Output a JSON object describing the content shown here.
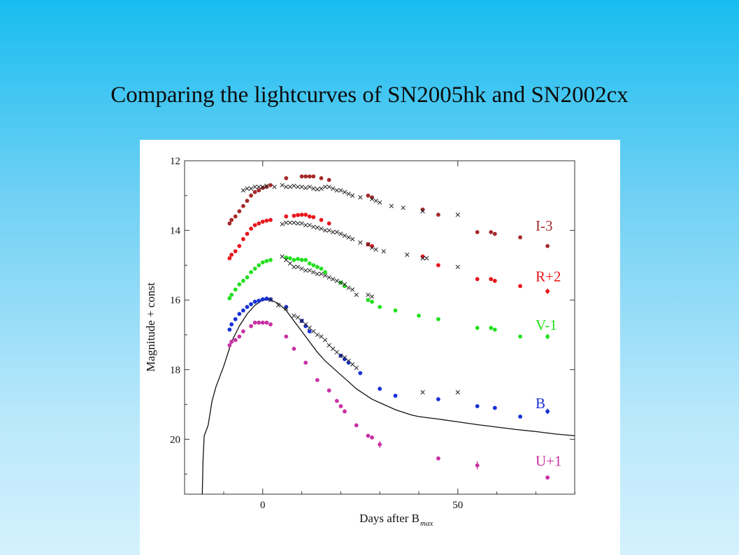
{
  "slide": {
    "title": "Comparing the lightcurves of SN2005hk and SN2002cx"
  },
  "chart_data": {
    "type": "scatter",
    "title": "",
    "xlabel": "Days after B",
    "xlabel_subscript": "max",
    "ylabel": "Magnitude + const",
    "xlim": [
      -20,
      80
    ],
    "ylim": [
      21.6,
      12
    ],
    "y_inverted": true,
    "x_ticks": [
      0,
      50
    ],
    "y_ticks": [
      12,
      14,
      16,
      18,
      20
    ],
    "series": [
      {
        "name": "I-3",
        "color": "#a52a2a",
        "marker": "dot",
        "x": [
          -8.5,
          -8,
          -7,
          -6,
          -5,
          -4,
          -3,
          -2,
          -1,
          0,
          1,
          2,
          6,
          10,
          11,
          12,
          13,
          15,
          17,
          27,
          28,
          41,
          45,
          55,
          58.5,
          59.5,
          66,
          73
        ],
        "y": [
          13.8,
          13.7,
          13.6,
          13.45,
          13.3,
          13.15,
          13.0,
          12.9,
          12.85,
          12.78,
          12.75,
          12.7,
          12.5,
          12.45,
          12.45,
          12.45,
          12.45,
          12.5,
          12.55,
          13.0,
          13.05,
          13.4,
          13.55,
          14.05,
          14.05,
          14.1,
          14.2,
          14.45
        ]
      },
      {
        "name": "R+2",
        "color": "#e8161b",
        "marker": "dot",
        "x": [
          -8.5,
          -8,
          -7,
          -6,
          -5,
          -4,
          -3,
          -2,
          -1,
          0,
          1,
          2,
          6,
          8,
          9,
          10,
          11,
          12,
          13,
          15,
          17,
          27,
          28,
          41,
          45,
          55,
          58.5,
          59.5,
          66,
          73
        ],
        "y": [
          14.8,
          14.7,
          14.6,
          14.45,
          14.25,
          14.1,
          13.95,
          13.85,
          13.8,
          13.75,
          13.72,
          13.7,
          13.6,
          13.58,
          13.56,
          13.55,
          13.55,
          13.6,
          13.62,
          13.7,
          13.8,
          14.4,
          14.45,
          14.75,
          15.0,
          15.4,
          15.4,
          15.45,
          15.6,
          15.75
        ],
        "error_bars": [
          {
            "x": 73,
            "y": 15.75,
            "err": 0.08
          }
        ]
      },
      {
        "name": "V-1",
        "color": "#22e01e",
        "marker": "dot",
        "x": [
          -8.5,
          -8,
          -7,
          -6,
          -5,
          -4,
          -3,
          -2,
          -1,
          0,
          1,
          2,
          6,
          7,
          8,
          9,
          10,
          11,
          12,
          13,
          14,
          15,
          16,
          20,
          21,
          27,
          28,
          30,
          34,
          40,
          45,
          55,
          58.5,
          59.5,
          66,
          73
        ],
        "y": [
          15.95,
          15.85,
          15.7,
          15.55,
          15.45,
          15.35,
          15.2,
          15.1,
          15.0,
          14.92,
          14.88,
          14.85,
          14.78,
          14.8,
          14.85,
          14.82,
          14.85,
          14.85,
          14.95,
          15.0,
          15.05,
          15.1,
          15.2,
          15.5,
          15.6,
          16.0,
          16.05,
          16.2,
          16.3,
          16.45,
          16.55,
          16.8,
          16.8,
          16.85,
          17.05,
          17.05
        ],
        "error_bars": [
          {
            "x": 73,
            "y": 17.05,
            "err": 0.08
          }
        ]
      },
      {
        "name": "B",
        "color": "#1730d6",
        "marker": "dot",
        "x": [
          -8.5,
          -8,
          -7,
          -6,
          -5,
          -4,
          -3,
          -2,
          -1,
          0,
          1,
          2,
          6,
          10,
          11,
          12,
          20,
          21,
          22,
          25,
          30,
          34,
          45,
          55,
          59.5,
          66,
          73
        ],
        "y": [
          16.85,
          16.7,
          16.55,
          16.4,
          16.3,
          16.2,
          16.12,
          16.05,
          16.02,
          15.98,
          15.96,
          15.98,
          16.2,
          16.6,
          16.75,
          16.9,
          17.6,
          17.7,
          17.8,
          18.1,
          18.55,
          18.75,
          18.85,
          19.05,
          19.1,
          19.35,
          19.2
        ],
        "error_bars": [
          {
            "x": 73,
            "y": 19.2,
            "err": 0.08
          }
        ]
      },
      {
        "name": "U+1",
        "color": "#c830a4",
        "marker": "dot",
        "x": [
          -8.5,
          -8,
          -7,
          -6,
          -5,
          -3,
          -2,
          -1,
          0,
          1,
          2,
          6,
          8,
          11,
          14,
          17,
          19,
          20,
          21,
          24,
          27,
          28,
          30,
          45,
          55,
          73
        ],
        "y": [
          17.3,
          17.2,
          17.15,
          17.05,
          16.9,
          16.75,
          16.65,
          16.65,
          16.65,
          16.65,
          16.7,
          17.05,
          17.4,
          17.8,
          18.3,
          18.6,
          18.9,
          19.05,
          19.2,
          19.6,
          19.9,
          19.95,
          20.15,
          20.55,
          20.75,
          21.1
        ],
        "error_bars": [
          {
            "x": 30,
            "y": 20.15,
            "err": 0.1
          },
          {
            "x": 55,
            "y": 20.75,
            "err": 0.12
          }
        ]
      },
      {
        "name": "SN2002cx",
        "color": "#222222",
        "marker": "x",
        "x": [
          -5,
          -4,
          -3,
          -2,
          -1,
          0,
          1,
          3,
          5,
          6,
          7,
          8,
          9,
          10,
          11,
          12,
          13,
          14,
          15,
          16,
          17,
          18,
          19,
          20,
          21,
          22,
          23,
          25,
          28,
          29,
          30,
          33,
          36,
          41,
          50,
          5,
          6,
          7,
          8,
          9,
          10,
          11,
          12,
          13,
          14,
          15,
          16,
          17,
          18,
          19,
          20,
          21,
          22,
          23,
          25,
          27,
          28,
          29,
          31,
          37,
          41,
          42,
          50,
          5,
          6,
          7,
          8,
          9,
          10,
          11,
          12,
          13,
          14,
          15,
          16,
          17,
          18,
          19,
          20,
          21,
          22,
          23,
          24,
          27,
          28,
          2,
          4,
          6,
          8,
          9,
          10,
          11,
          12,
          13,
          14,
          15,
          16,
          17,
          18,
          19,
          20,
          21,
          22,
          23,
          24,
          41,
          50
        ],
        "y": [
          12.85,
          12.8,
          12.8,
          12.75,
          12.75,
          12.75,
          12.72,
          12.75,
          12.7,
          12.75,
          12.75,
          12.72,
          12.75,
          12.75,
          12.78,
          12.75,
          12.8,
          12.82,
          12.8,
          12.75,
          12.75,
          12.8,
          12.85,
          12.85,
          12.9,
          12.95,
          13.0,
          13.05,
          13.1,
          13.15,
          13.2,
          13.3,
          13.35,
          13.45,
          13.55,
          13.82,
          13.78,
          13.78,
          13.78,
          13.8,
          13.8,
          13.85,
          13.85,
          13.9,
          13.92,
          13.95,
          14.0,
          14.0,
          14.05,
          14.05,
          14.1,
          14.15,
          14.2,
          14.25,
          14.35,
          14.4,
          14.5,
          14.55,
          14.6,
          14.7,
          14.8,
          14.8,
          15.05,
          14.75,
          14.85,
          14.95,
          15.05,
          15.05,
          15.1,
          15.15,
          15.15,
          15.2,
          15.25,
          15.25,
          15.3,
          15.35,
          15.4,
          15.45,
          15.5,
          15.55,
          15.65,
          15.7,
          15.85,
          15.85,
          15.9,
          16.0,
          16.15,
          16.25,
          16.45,
          16.5,
          16.6,
          16.7,
          16.8,
          16.9,
          17.0,
          17.05,
          17.15,
          17.3,
          17.4,
          17.5,
          17.6,
          17.65,
          17.75,
          17.85,
          17.95,
          18.65,
          18.65
        ]
      },
      {
        "name": "model",
        "color": "#111111",
        "marker": "line",
        "x": [
          -15.5,
          -15.3,
          -15,
          -14,
          -13,
          -12,
          -10,
          -8,
          -6,
          -4,
          -2,
          0,
          2,
          4,
          6,
          8,
          10,
          12,
          14,
          16,
          18,
          20,
          22,
          24,
          26,
          28,
          30,
          32,
          34,
          38,
          40,
          45,
          50,
          55,
          60,
          65,
          70,
          75,
          80
        ],
        "y": [
          21.6,
          20.6,
          19.9,
          19.6,
          18.9,
          18.5,
          17.9,
          17.2,
          16.75,
          16.4,
          16.15,
          16.0,
          16.0,
          16.1,
          16.3,
          16.6,
          16.9,
          17.2,
          17.5,
          17.75,
          17.95,
          18.15,
          18.35,
          18.55,
          18.7,
          18.85,
          18.95,
          19.05,
          19.15,
          19.3,
          19.35,
          19.42,
          19.5,
          19.58,
          19.65,
          19.72,
          19.78,
          19.85,
          19.9
        ]
      }
    ],
    "band_labels": [
      "I-3",
      "R+2",
      "V-1",
      "B",
      "U+1"
    ],
    "grid": false,
    "legend": "band labels at right"
  }
}
